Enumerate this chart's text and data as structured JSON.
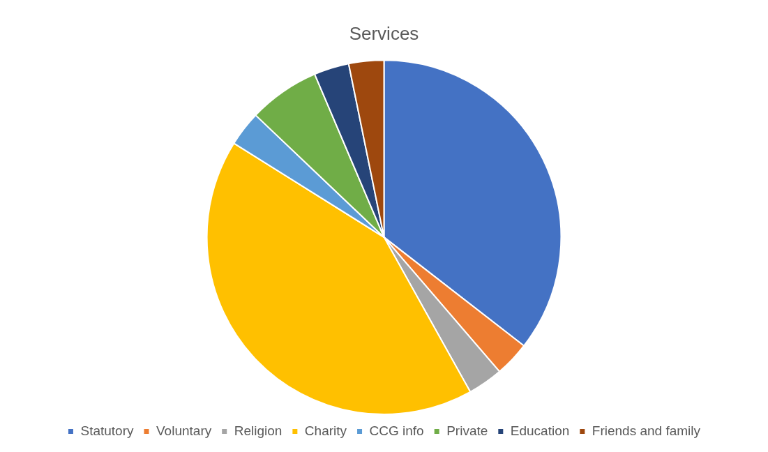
{
  "chart_data": {
    "type": "pie",
    "title": "Services",
    "categories": [
      "Statutory",
      "Voluntary",
      "Religion",
      "Charity",
      "CCG info",
      "Private",
      "Education",
      "Friends and family"
    ],
    "values": [
      35.5,
      3.2,
      3.2,
      42.0,
      3.2,
      6.5,
      3.2,
      3.2
    ],
    "colors": [
      "#4472c4",
      "#ed7d31",
      "#a5a5a5",
      "#ffc000",
      "#5b9bd5",
      "#70ad47",
      "#264478",
      "#9e480e"
    ],
    "legend": "bottom"
  }
}
